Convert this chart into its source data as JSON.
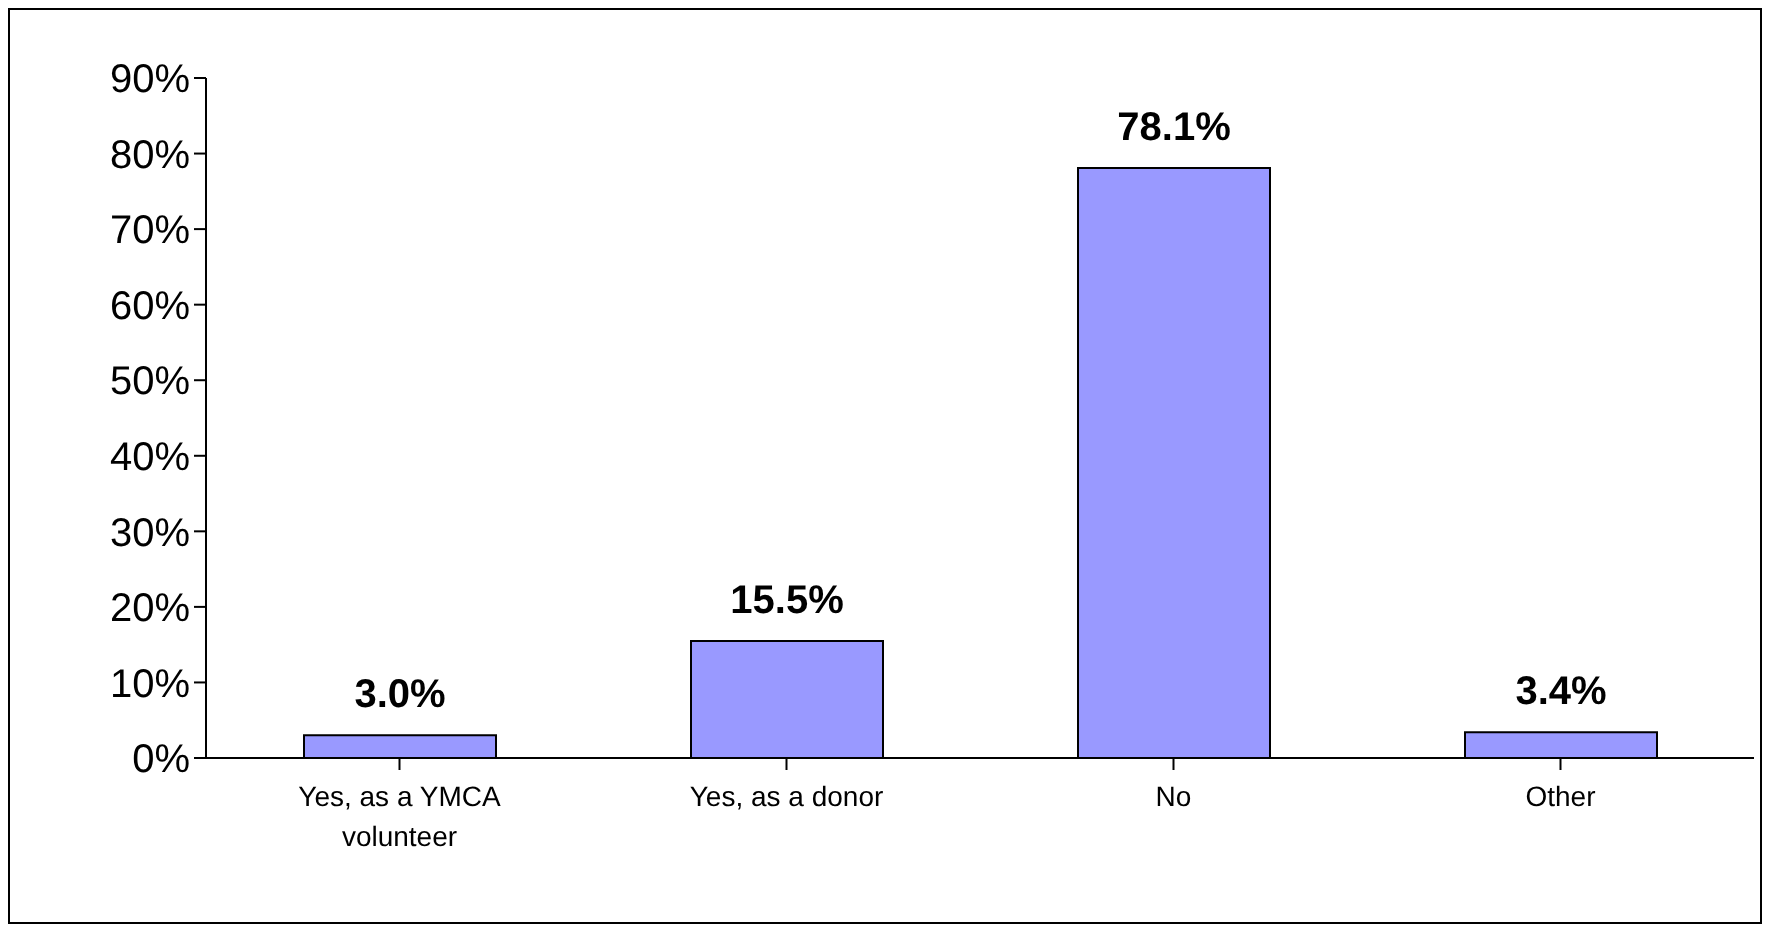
{
  "chart_data": {
    "type": "bar",
    "categories": [
      "Yes, as a YMCA volunteer",
      "Yes, as a donor",
      "No",
      "Other"
    ],
    "values": [
      3.0,
      15.5,
      78.1,
      3.4
    ],
    "value_labels": [
      "3.0%",
      "15.5%",
      "78.1%",
      "3.4%"
    ],
    "color": "#9999ff",
    "ylim": [
      0,
      90
    ],
    "yticks": [
      {
        "value": 0,
        "label": "0%"
      },
      {
        "value": 10,
        "label": "10%"
      },
      {
        "value": 20,
        "label": "20%"
      },
      {
        "value": 30,
        "label": "30%"
      },
      {
        "value": 40,
        "label": "40%"
      },
      {
        "value": 50,
        "label": "50%"
      },
      {
        "value": 60,
        "label": "60%"
      },
      {
        "value": 70,
        "label": "70%"
      },
      {
        "value": 80,
        "label": "80%"
      },
      {
        "value": 90,
        "label": "90%"
      }
    ],
    "grid": false,
    "legend": false
  }
}
